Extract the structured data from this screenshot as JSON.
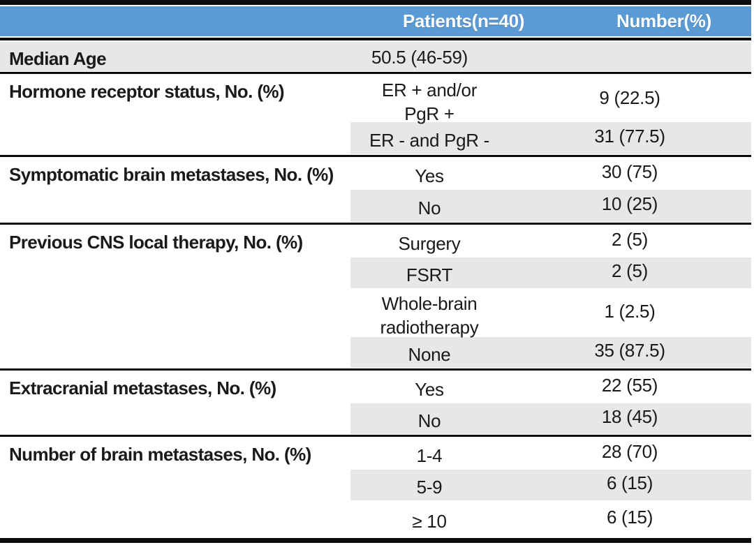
{
  "colors": {
    "header_bg": "#5B9BD5",
    "header_text": "#FFFFFF",
    "band_gray": "#E8E7E7",
    "rule_black": "#0B0B0B"
  },
  "header": {
    "patients_label": "Patients(n=40)",
    "number_label": "Number(%)"
  },
  "sections": [
    {
      "label": "Median Age",
      "rows": [
        {
          "value": "50.5 (46-59)",
          "number": ""
        }
      ]
    },
    {
      "label": "Hormone receptor status, No. (%)",
      "rows": [
        {
          "value": "ER + and/or\nPgR +",
          "number": "9 (22.5)"
        },
        {
          "value": "ER - and PgR -",
          "number": "31 (77.5)"
        }
      ]
    },
    {
      "label": "Symptomatic brain metastases, No. (%)",
      "rows": [
        {
          "value": "Yes",
          "number": "30 (75)"
        },
        {
          "value": "No",
          "number": "10 (25)"
        }
      ]
    },
    {
      "label": "Previous CNS local therapy, No. (%)",
      "rows": [
        {
          "value": "Surgery",
          "number": "2 (5)"
        },
        {
          "value": "FSRT",
          "number": "2 (5)"
        },
        {
          "value": "Whole-brain\nradiotherapy",
          "number": "1 (2.5)"
        },
        {
          "value": "None",
          "number": "35 (87.5)"
        }
      ]
    },
    {
      "label": "Extracranial metastases, No. (%)",
      "rows": [
        {
          "value": "Yes",
          "number": "22 (55)"
        },
        {
          "value": "No",
          "number": "18 (45)"
        }
      ]
    },
    {
      "label": "Number of brain metastases, No. (%)",
      "rows": [
        {
          "value": "1-4",
          "number": "28 (70)"
        },
        {
          "value": "5-9",
          "number": "6 (15)"
        },
        {
          "value": "≥ 10",
          "number": "6 (15)"
        }
      ]
    }
  ]
}
